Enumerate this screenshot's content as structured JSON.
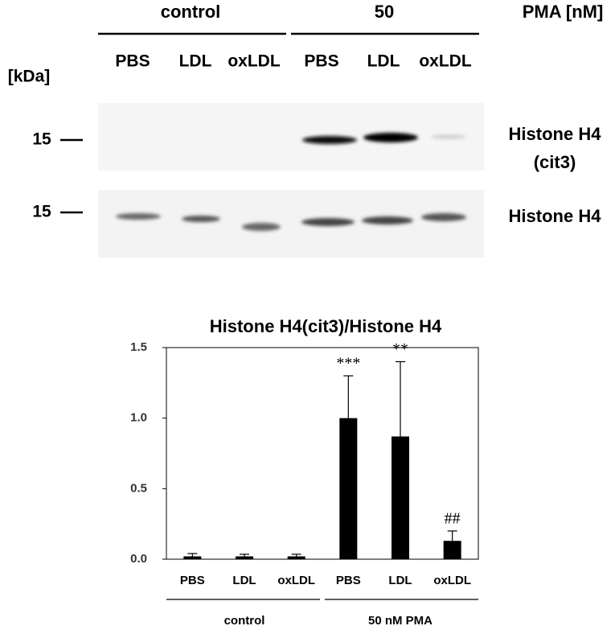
{
  "blot": {
    "treatment_groups": [
      "control",
      "50"
    ],
    "treatment_unit": "PMA [nM]",
    "lanes": [
      "PBS",
      "LDL",
      "oxLDL",
      "PBS",
      "LDL",
      "oxLDL"
    ],
    "size_unit": "[kDa]",
    "panels": [
      {
        "marker": "15",
        "label": "Histone H4",
        "sublabel": "(cit3)"
      },
      {
        "marker": "15",
        "label": "Histone H4"
      }
    ]
  },
  "chart_data": {
    "type": "bar",
    "title": "Histone H4(cit3)/Histone H4",
    "categories": [
      "PBS",
      "LDL",
      "oxLDL",
      "PBS",
      "LDL",
      "oxLDL"
    ],
    "values": [
      0.02,
      0.02,
      0.02,
      1.0,
      0.87,
      0.13
    ],
    "errors": [
      0.02,
      0.015,
      0.015,
      0.3,
      0.53,
      0.07
    ],
    "annotations": [
      null,
      null,
      null,
      "***",
      "**",
      "##"
    ],
    "groups": [
      {
        "label": "control",
        "size": 3
      },
      {
        "label": "50 nM PMA",
        "size": 3
      }
    ],
    "color": "#000000",
    "ylim": [
      0,
      1.5
    ],
    "yticks": [
      {
        "value": 0,
        "label": "0.0"
      },
      {
        "value": 0.5,
        "label": "0.5"
      },
      {
        "value": 1,
        "label": "1.0"
      },
      {
        "value": 1.5,
        "label": "1.5"
      }
    ]
  }
}
